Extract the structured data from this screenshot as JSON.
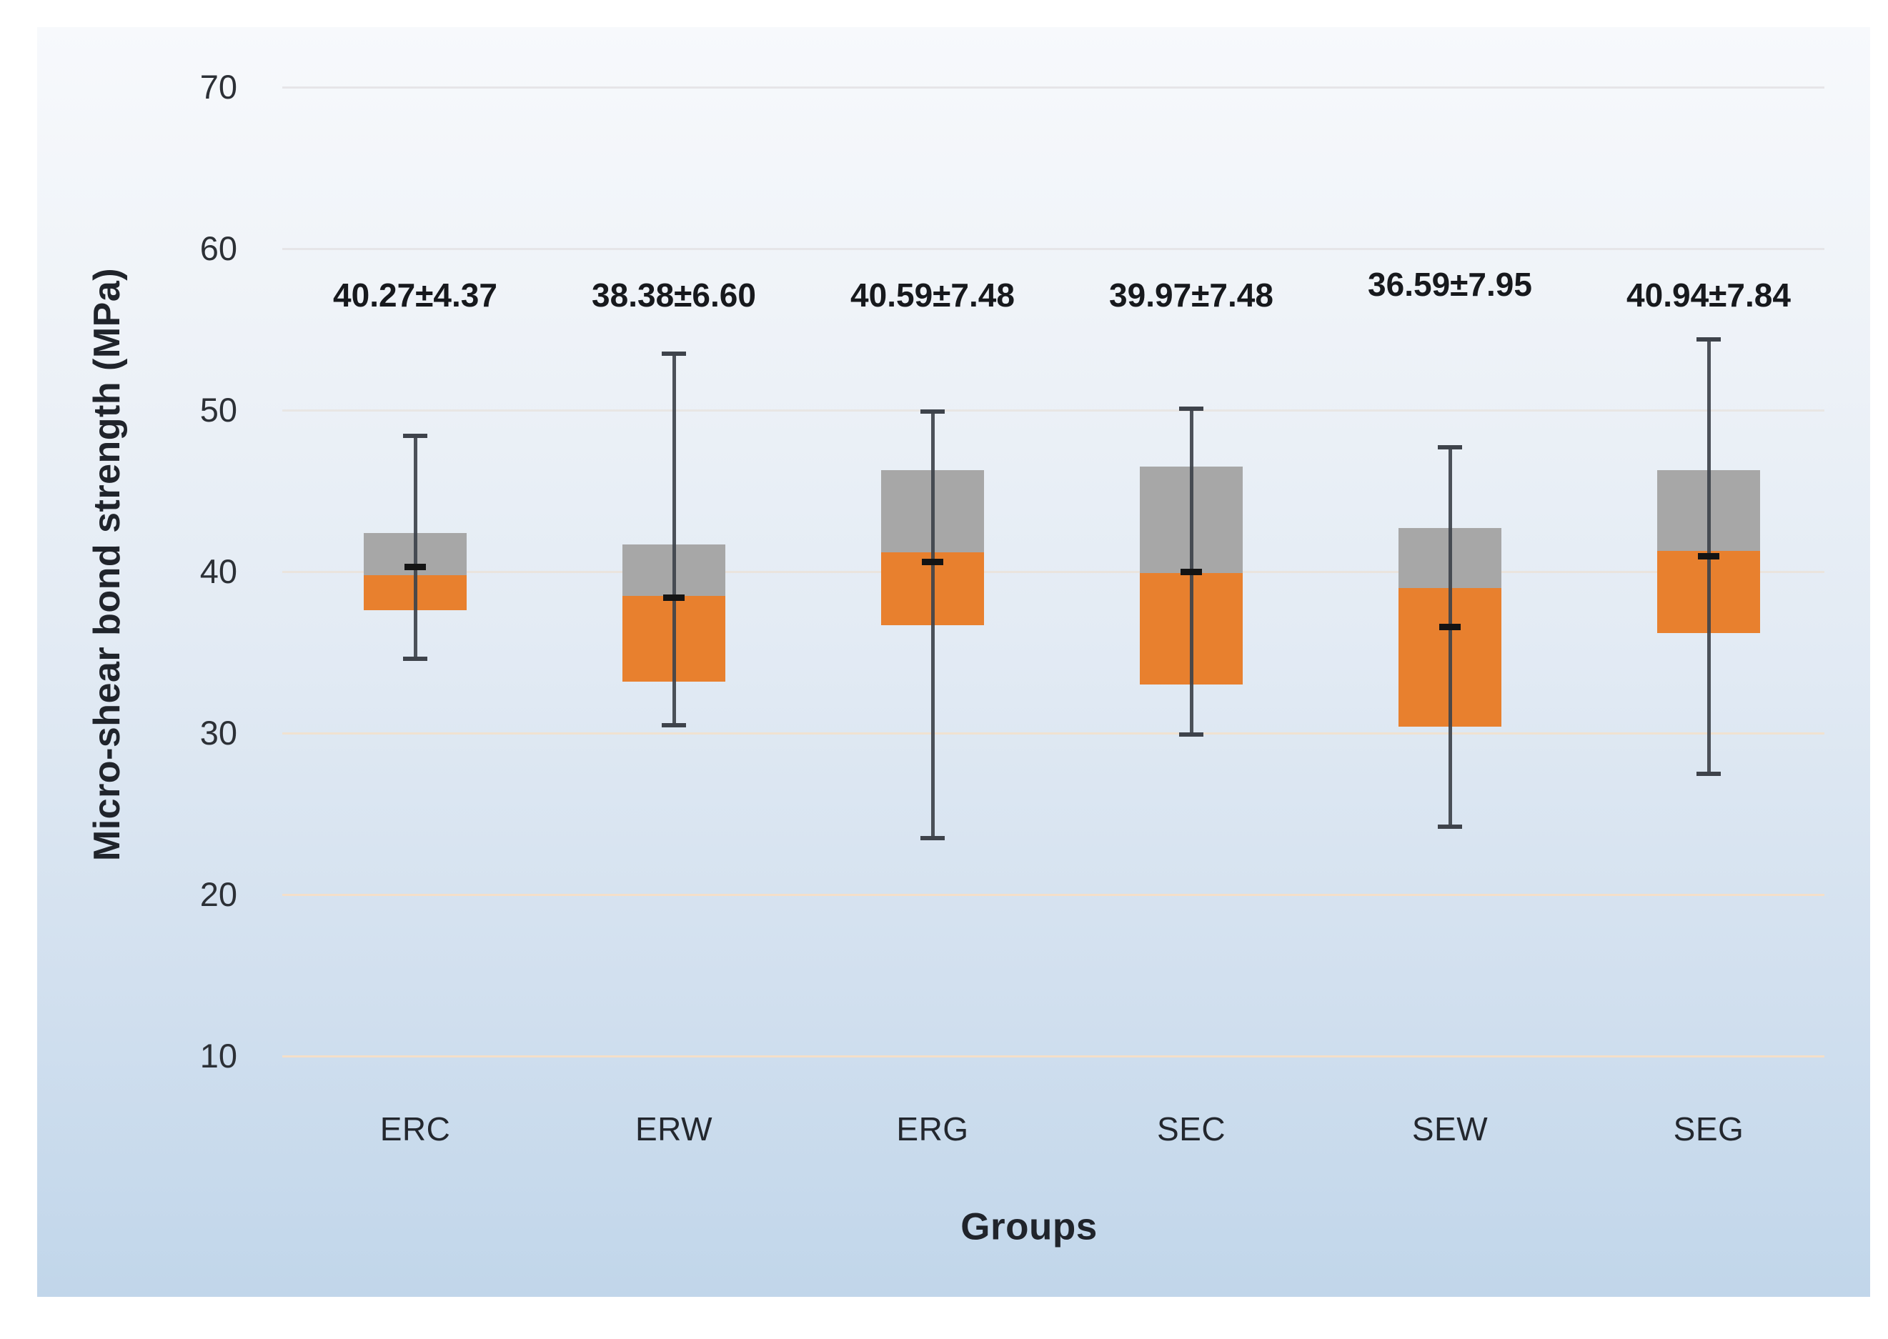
{
  "chart_data": {
    "type": "box",
    "title": "",
    "ylabel": "Micro-shear bond strength (MPa)",
    "xlabel": "Groups",
    "y_ticks": [
      70,
      60,
      50,
      40,
      30,
      20,
      10
    ],
    "ylim": [
      7,
      73
    ],
    "grid": true,
    "legend": false,
    "categories": [
      "ERC",
      "ERW",
      "ERG",
      "SEC",
      "SEW",
      "SEG"
    ],
    "annotations": [
      "40.27±4.37",
      "38.38±6.60",
      "40.59±7.48",
      "39.97±7.48",
      "36.59±7.95",
      "40.94±7.84"
    ],
    "groups": [
      {
        "label": "ERC",
        "annotation": "40.27±4.37",
        "mean": 40.27,
        "sd": 4.37,
        "whisker_low": 34.6,
        "q1": 37.6,
        "median": 39.8,
        "q3": 42.4,
        "whisker_high": 48.4,
        "annotation_dy": 0
      },
      {
        "label": "ERW",
        "annotation": "38.38±6.60",
        "mean": 38.38,
        "sd": 6.6,
        "whisker_low": 30.5,
        "q1": 33.2,
        "median": 38.5,
        "q3": 41.7,
        "whisker_high": 53.5,
        "annotation_dy": 0
      },
      {
        "label": "ERG",
        "annotation": "40.59±7.48",
        "mean": 40.59,
        "sd": 7.48,
        "whisker_low": 23.5,
        "q1": 36.7,
        "median": 41.2,
        "q3": 46.3,
        "whisker_high": 49.9,
        "annotation_dy": 0
      },
      {
        "label": "SEC",
        "annotation": "39.97±7.48",
        "mean": 39.97,
        "sd": 7.48,
        "whisker_low": 29.9,
        "q1": 33.0,
        "median": 39.9,
        "q3": 46.5,
        "whisker_high": 50.1,
        "annotation_dy": 0
      },
      {
        "label": "SEW",
        "annotation": "36.59±7.95",
        "mean": 36.59,
        "sd": 7.95,
        "whisker_low": 24.2,
        "q1": 30.4,
        "median": 39.0,
        "q3": 42.7,
        "whisker_high": 47.7,
        "annotation_dy": -15
      },
      {
        "label": "SEG",
        "annotation": "40.94±7.84",
        "mean": 40.94,
        "sd": 7.84,
        "whisker_low": 27.5,
        "q1": 36.2,
        "median": 41.3,
        "q3": 46.3,
        "whisker_high": 54.4,
        "annotation_dy": 0
      }
    ],
    "gridline_colors": [
      "#e6e5e8",
      "#e6e5e8",
      "#e8e6e4",
      "#eae4de",
      "#f0e2d0",
      "#f4dfc9",
      "#f4dfc9"
    ],
    "colors": {
      "box_lower": "#e8802e",
      "box_upper": "#a7a7a7",
      "whisker": "#3e434b",
      "mean_marker": "#141414",
      "text": "#20242b",
      "tick_text": "#2c3036",
      "panel_gradient_top": "#f7f9fc",
      "panel_gradient_bottom": "#c1d6ea",
      "page_background": "#ffffff"
    }
  }
}
